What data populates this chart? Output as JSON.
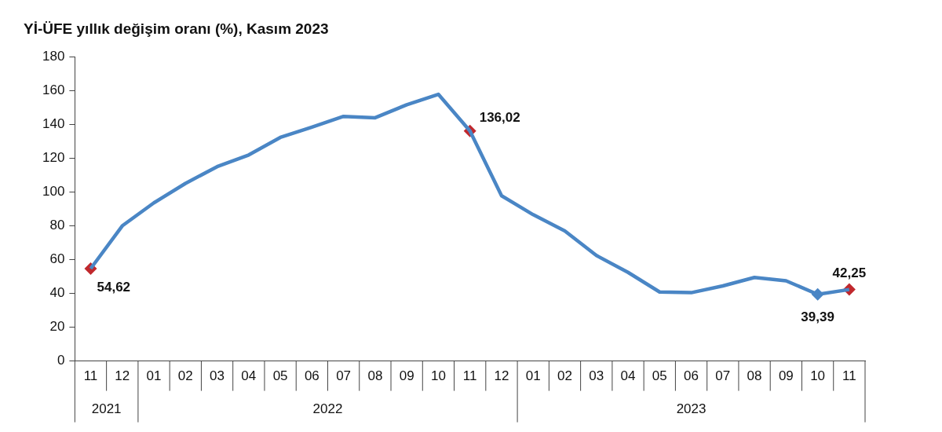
{
  "chart_data": {
    "type": "line",
    "title": "Yİ-ÜFE yıllık değişim oranı (%), Kasım 2023",
    "categories": [
      "11",
      "12",
      "01",
      "02",
      "03",
      "04",
      "05",
      "06",
      "07",
      "08",
      "09",
      "10",
      "11",
      "12",
      "01",
      "02",
      "03",
      "04",
      "05",
      "06",
      "07",
      "08",
      "09",
      "10",
      "11"
    ],
    "series": [
      {
        "color": "#4a86c5",
        "values": [
          54.62,
          79.9,
          93.5,
          105,
          114.9,
          121.8,
          132.2,
          138.3,
          144.6,
          143.8,
          151.5,
          157.7,
          136.02,
          97.7,
          86.5,
          76.9,
          62.4,
          52.4,
          40.8,
          40.4,
          44.4,
          49.4,
          47.4,
          39.39,
          42.25
        ],
        "line_style": "solid"
      },
      {
        "type": "scatter",
        "marker": "diamond",
        "color": "#c0282d",
        "values": [
          54.62,
          null,
          null,
          null,
          null,
          null,
          null,
          null,
          null,
          null,
          null,
          null,
          136.02,
          null,
          null,
          null,
          null,
          null,
          null,
          null,
          null,
          null,
          null,
          39.39,
          42.25
        ],
        "colors": [
          "#c0282d",
          null,
          null,
          null,
          null,
          null,
          null,
          null,
          null,
          null,
          null,
          null,
          "#c0282d",
          null,
          null,
          null,
          null,
          null,
          null,
          null,
          null,
          null,
          null,
          "#4a86c5",
          "#c0282d"
        ],
        "value_labels": [
          "54,62",
          null,
          null,
          null,
          null,
          null,
          null,
          null,
          null,
          null,
          null,
          null,
          "136,02",
          null,
          null,
          null,
          null,
          null,
          null,
          null,
          null,
          null,
          null,
          "39,39",
          "42,25"
        ]
      }
    ],
    "annotations": [
      "2021",
      "2022",
      "2023"
    ],
    "ylim": [
      0,
      180
    ],
    "yticks": [
      0,
      20,
      40,
      60,
      80,
      100,
      120,
      140,
      160,
      180
    ],
    "grid": false,
    "legend": false
  }
}
